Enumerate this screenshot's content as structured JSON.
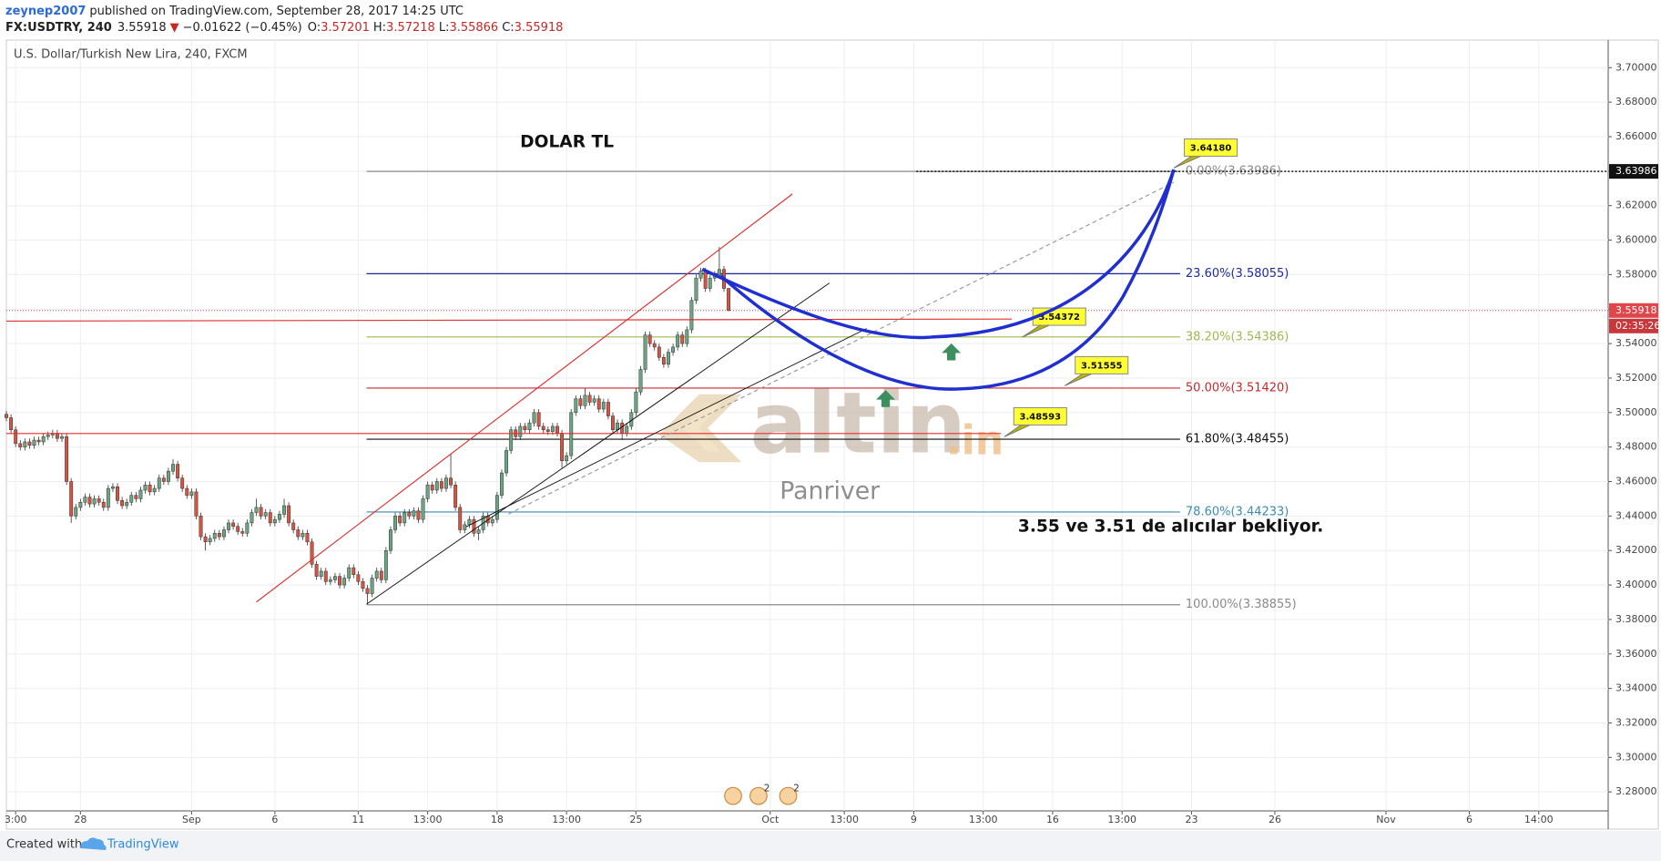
{
  "header": {
    "author": "zeynep2007",
    "published": "published on TradingView.com, September 28, 2017 14:25 UTC"
  },
  "symbol": {
    "ticker": "FX:USDTRY, 240",
    "last": 3.55918,
    "change": "−0.01622 (−0.45%)",
    "open_label": "O:",
    "open": 3.57201,
    "high_label": "H:",
    "high": 3.57218,
    "low_label": "L:",
    "low": 3.55866,
    "close_label": "C:",
    "close": 3.55918
  },
  "chart_data": {
    "type": "candlestick",
    "title": "U.S. Dollar/Turkish New Lira, 240, FXCM",
    "up_color": "#6ba583",
    "down_color": "#d75442",
    "grid": true,
    "xlim": [
      -76,
      270
    ],
    "xticks": [
      {
        "value": -74,
        "label": "3:00"
      },
      {
        "value": -60,
        "label": "28"
      },
      {
        "value": -36,
        "label": "Sep"
      },
      {
        "value": -18,
        "label": "6"
      },
      {
        "value": 0,
        "label": "11"
      },
      {
        "value": 15,
        "label": "13:00"
      },
      {
        "value": 30,
        "label": "18"
      },
      {
        "value": 45,
        "label": "13:00"
      },
      {
        "value": 60,
        "label": "25"
      },
      {
        "value": 89,
        "label": "Oct"
      },
      {
        "value": 105,
        "label": "13:00"
      },
      {
        "value": 120,
        "label": "9"
      },
      {
        "value": 135,
        "label": "13:00"
      },
      {
        "value": 150,
        "label": "16"
      },
      {
        "value": 165,
        "label": "13:00"
      },
      {
        "value": 180,
        "label": "23"
      },
      {
        "value": 198,
        "label": "26"
      },
      {
        "value": 222,
        "label": "Nov"
      },
      {
        "value": 240,
        "label": "6"
      },
      {
        "value": 255,
        "label": "14:00"
      }
    ],
    "ylim": [
      3.269,
      3.716
    ],
    "yticks": [
      {
        "value": 3.28,
        "label": "3.28000"
      },
      {
        "value": 3.3,
        "label": "3.30000"
      },
      {
        "value": 3.32,
        "label": "3.32000"
      },
      {
        "value": 3.34,
        "label": "3.34000"
      },
      {
        "value": 3.36,
        "label": "3.36000"
      },
      {
        "value": 3.38,
        "label": "3.38000"
      },
      {
        "value": 3.4,
        "label": "3.40000"
      },
      {
        "value": 3.42,
        "label": "3.42000"
      },
      {
        "value": 3.44,
        "label": "3.44000"
      },
      {
        "value": 3.46,
        "label": "3.46000"
      },
      {
        "value": 3.48,
        "label": "3.48000"
      },
      {
        "value": 3.5,
        "label": "3.50000"
      },
      {
        "value": 3.52,
        "label": "3.52000"
      },
      {
        "value": 3.54,
        "label": "3.54000"
      },
      {
        "value": 3.56,
        "label": "3.56000"
      },
      {
        "value": 3.58,
        "label": "3.58000"
      },
      {
        "value": 3.6,
        "label": "3.60000"
      },
      {
        "value": 3.62,
        "label": "3.62000"
      },
      {
        "value": 3.64,
        "label": "3.64000"
      },
      {
        "value": 3.66,
        "label": "3.66000"
      },
      {
        "value": 3.68,
        "label": "3.68000"
      },
      {
        "value": 3.7,
        "label": "3.70000"
      }
    ],
    "start_index": -76,
    "ohlc": [
      [
        3.499,
        3.501,
        3.495,
        3.497
      ],
      [
        3.497,
        3.499,
        3.488,
        3.49
      ],
      [
        3.49,
        3.492,
        3.48,
        3.482
      ],
      [
        3.482,
        3.484,
        3.478,
        3.48
      ],
      [
        3.48,
        3.485,
        3.478,
        3.483
      ],
      [
        3.483,
        3.485,
        3.479,
        3.481
      ],
      [
        3.481,
        3.486,
        3.479,
        3.484
      ],
      [
        3.484,
        3.486,
        3.481,
        3.483
      ],
      [
        3.483,
        3.488,
        3.481,
        3.486
      ],
      [
        3.486,
        3.489,
        3.484,
        3.487
      ],
      [
        3.487,
        3.49,
        3.485,
        3.488
      ],
      [
        3.488,
        3.49,
        3.483,
        3.485
      ],
      [
        3.485,
        3.488,
        3.483,
        3.486
      ],
      [
        3.486,
        3.488,
        3.458,
        3.46
      ],
      [
        3.46,
        3.462,
        3.436,
        3.44
      ],
      [
        3.44,
        3.447,
        3.438,
        3.445
      ],
      [
        3.445,
        3.45,
        3.443,
        3.448
      ],
      [
        3.448,
        3.453,
        3.446,
        3.451
      ],
      [
        3.451,
        3.453,
        3.445,
        3.447
      ],
      [
        3.447,
        3.452,
        3.445,
        3.45
      ],
      [
        3.45,
        3.452,
        3.446,
        3.448
      ],
      [
        3.448,
        3.45,
        3.443,
        3.445
      ],
      [
        3.445,
        3.458,
        3.443,
        3.456
      ],
      [
        3.456,
        3.459,
        3.454,
        3.457
      ],
      [
        3.457,
        3.459,
        3.447,
        3.449
      ],
      [
        3.449,
        3.451,
        3.444,
        3.446
      ],
      [
        3.446,
        3.45,
        3.444,
        3.448
      ],
      [
        3.448,
        3.454,
        3.446,
        3.452
      ],
      [
        3.452,
        3.454,
        3.448,
        3.45
      ],
      [
        3.45,
        3.457,
        3.448,
        3.455
      ],
      [
        3.455,
        3.46,
        3.453,
        3.458
      ],
      [
        3.458,
        3.46,
        3.452,
        3.454
      ],
      [
        3.454,
        3.458,
        3.452,
        3.456
      ],
      [
        3.456,
        3.464,
        3.454,
        3.462
      ],
      [
        3.462,
        3.464,
        3.458,
        3.46
      ],
      [
        3.46,
        3.468,
        3.458,
        3.466
      ],
      [
        3.466,
        3.473,
        3.464,
        3.47
      ],
      [
        3.47,
        3.472,
        3.46,
        3.462
      ],
      [
        3.462,
        3.464,
        3.454,
        3.456
      ],
      [
        3.456,
        3.458,
        3.45,
        3.452
      ],
      [
        3.452,
        3.456,
        3.45,
        3.454
      ],
      [
        3.454,
        3.456,
        3.438,
        3.44
      ],
      [
        3.44,
        3.442,
        3.426,
        3.428
      ],
      [
        3.428,
        3.43,
        3.42,
        3.425
      ],
      [
        3.425,
        3.429,
        3.423,
        3.427
      ],
      [
        3.427,
        3.432,
        3.425,
        3.43
      ],
      [
        3.43,
        3.432,
        3.426,
        3.428
      ],
      [
        3.428,
        3.434,
        3.426,
        3.432
      ],
      [
        3.432,
        3.438,
        3.43,
        3.436
      ],
      [
        3.436,
        3.438,
        3.432,
        3.434
      ],
      [
        3.434,
        3.436,
        3.429,
        3.431
      ],
      [
        3.431,
        3.433,
        3.428,
        3.43
      ],
      [
        3.43,
        3.438,
        3.428,
        3.436
      ],
      [
        3.436,
        3.444,
        3.434,
        3.442
      ],
      [
        3.442,
        3.45,
        3.44,
        3.445
      ],
      [
        3.445,
        3.447,
        3.438,
        3.44
      ],
      [
        3.44,
        3.444,
        3.438,
        3.442
      ],
      [
        3.442,
        3.444,
        3.434,
        3.436
      ],
      [
        3.436,
        3.44,
        3.434,
        3.438
      ],
      [
        3.438,
        3.443,
        3.436,
        3.441
      ],
      [
        3.441,
        3.45,
        3.439,
        3.446
      ],
      [
        3.446,
        3.448,
        3.434,
        3.436
      ],
      [
        3.436,
        3.438,
        3.43,
        3.432
      ],
      [
        3.432,
        3.434,
        3.426,
        3.428
      ],
      [
        3.428,
        3.432,
        3.426,
        3.43
      ],
      [
        3.43,
        3.432,
        3.423,
        3.425
      ],
      [
        3.425,
        3.427,
        3.41,
        3.412
      ],
      [
        3.412,
        3.414,
        3.403,
        3.405
      ],
      [
        3.405,
        3.41,
        3.403,
        3.408
      ],
      [
        3.408,
        3.41,
        3.4,
        3.402
      ],
      [
        3.402,
        3.405,
        3.4,
        3.403
      ],
      [
        3.403,
        3.407,
        3.401,
        3.405
      ],
      [
        3.405,
        3.407,
        3.398,
        3.4
      ],
      [
        3.4,
        3.406,
        3.398,
        3.404
      ],
      [
        3.404,
        3.412,
        3.402,
        3.41
      ],
      [
        3.41,
        3.412,
        3.404,
        3.406
      ],
      [
        3.406,
        3.408,
        3.4,
        3.402
      ],
      [
        3.402,
        3.404,
        3.396,
        3.398
      ],
      [
        3.398,
        3.4,
        3.389,
        3.395
      ],
      [
        3.395,
        3.406,
        3.393,
        3.404
      ],
      [
        3.404,
        3.41,
        3.402,
        3.408
      ],
      [
        3.408,
        3.41,
        3.401,
        3.403
      ],
      [
        3.403,
        3.422,
        3.401,
        3.42
      ],
      [
        3.42,
        3.434,
        3.418,
        3.432
      ],
      [
        3.432,
        3.442,
        3.43,
        3.44
      ],
      [
        3.44,
        3.442,
        3.434,
        3.436
      ],
      [
        3.436,
        3.444,
        3.434,
        3.442
      ],
      [
        3.442,
        3.444,
        3.438,
        3.44
      ],
      [
        3.44,
        3.445,
        3.438,
        3.443
      ],
      [
        3.443,
        3.445,
        3.436,
        3.438
      ],
      [
        3.438,
        3.452,
        3.436,
        3.45
      ],
      [
        3.45,
        3.46,
        3.448,
        3.458
      ],
      [
        3.458,
        3.46,
        3.453,
        3.455
      ],
      [
        3.455,
        3.462,
        3.453,
        3.46
      ],
      [
        3.46,
        3.462,
        3.454,
        3.456
      ],
      [
        3.456,
        3.464,
        3.454,
        3.462
      ],
      [
        3.462,
        3.476,
        3.456,
        3.458
      ],
      [
        3.458,
        3.46,
        3.443,
        3.445
      ],
      [
        3.445,
        3.447,
        3.43,
        3.432
      ],
      [
        3.432,
        3.437,
        3.43,
        3.435
      ],
      [
        3.435,
        3.44,
        3.433,
        3.438
      ],
      [
        3.438,
        3.44,
        3.428,
        3.43
      ],
      [
        3.43,
        3.434,
        3.426,
        3.432
      ],
      [
        3.432,
        3.442,
        3.43,
        3.44
      ],
      [
        3.44,
        3.442,
        3.434,
        3.436
      ],
      [
        3.436,
        3.44,
        3.434,
        3.438
      ],
      [
        3.438,
        3.454,
        3.436,
        3.452
      ],
      [
        3.452,
        3.467,
        3.45,
        3.465
      ],
      [
        3.465,
        3.48,
        3.463,
        3.478
      ],
      [
        3.478,
        3.492,
        3.476,
        3.49
      ],
      [
        3.49,
        3.492,
        3.484,
        3.486
      ],
      [
        3.486,
        3.494,
        3.484,
        3.492
      ],
      [
        3.492,
        3.494,
        3.488,
        3.49
      ],
      [
        3.49,
        3.496,
        3.488,
        3.494
      ],
      [
        3.494,
        3.502,
        3.492,
        3.5
      ],
      [
        3.5,
        3.502,
        3.49,
        3.492
      ],
      [
        3.492,
        3.494,
        3.488,
        3.49
      ],
      [
        3.49,
        3.492,
        3.487,
        3.489
      ],
      [
        3.489,
        3.494,
        3.487,
        3.492
      ],
      [
        3.492,
        3.494,
        3.486,
        3.488
      ],
      [
        3.488,
        3.49,
        3.468,
        3.472
      ],
      [
        3.472,
        3.477,
        3.47,
        3.475
      ],
      [
        3.475,
        3.502,
        3.473,
        3.5
      ],
      [
        3.5,
        3.51,
        3.498,
        3.508
      ],
      [
        3.508,
        3.51,
        3.502,
        3.504
      ],
      [
        3.504,
        3.514,
        3.502,
        3.51
      ],
      [
        3.51,
        3.512,
        3.504,
        3.506
      ],
      [
        3.506,
        3.51,
        3.504,
        3.508
      ],
      [
        3.508,
        3.51,
        3.5,
        3.502
      ],
      [
        3.502,
        3.508,
        3.5,
        3.506
      ],
      [
        3.506,
        3.508,
        3.496,
        3.498
      ],
      [
        3.498,
        3.5,
        3.488,
        3.49
      ],
      [
        3.49,
        3.496,
        3.488,
        3.494
      ],
      [
        3.494,
        3.496,
        3.484,
        3.488
      ],
      [
        3.488,
        3.494,
        3.486,
        3.492
      ],
      [
        3.492,
        3.502,
        3.49,
        3.5
      ],
      [
        3.5,
        3.514,
        3.498,
        3.512
      ],
      [
        3.512,
        3.527,
        3.51,
        3.525
      ],
      [
        3.525,
        3.547,
        3.523,
        3.545
      ],
      [
        3.545,
        3.547,
        3.538,
        3.54
      ],
      [
        3.54,
        3.542,
        3.536,
        3.538
      ],
      [
        3.538,
        3.54,
        3.53,
        3.532
      ],
      [
        3.532,
        3.534,
        3.526,
        3.528
      ],
      [
        3.528,
        3.537,
        3.526,
        3.535
      ],
      [
        3.535,
        3.54,
        3.533,
        3.538
      ],
      [
        3.538,
        3.547,
        3.536,
        3.545
      ],
      [
        3.545,
        3.547,
        3.538,
        3.54
      ],
      [
        3.54,
        3.55,
        3.538,
        3.548
      ],
      [
        3.548,
        3.567,
        3.546,
        3.565
      ],
      [
        3.565,
        3.58,
        3.563,
        3.578
      ],
      [
        3.578,
        3.584,
        3.576,
        3.582
      ],
      [
        3.582,
        3.584,
        3.57,
        3.572
      ],
      [
        3.572,
        3.58,
        3.57,
        3.578
      ],
      [
        3.578,
        3.582,
        3.576,
        3.58
      ],
      [
        3.58,
        3.596,
        3.578,
        3.583
      ],
      [
        3.583,
        3.585,
        3.57,
        3.572
      ],
      [
        3.57201,
        3.57218,
        3.55866,
        3.55918
      ]
    ],
    "fib_levels": [
      {
        "value": 3.63986,
        "label": "0.00%(3.63986)",
        "color": "#8a8a8a"
      },
      {
        "value": 3.58055,
        "label": "23.60%(3.58055)",
        "color": "#1f2a9c"
      },
      {
        "value": 3.54386,
        "label": "38.20%(3.54386)",
        "color": "#9cba4e"
      },
      {
        "value": 3.5142,
        "label": "50.00%(3.51420)",
        "color": "#c8282d"
      },
      {
        "value": 3.48455,
        "label": "61.80%(3.48455)",
        "color": "#111111"
      },
      {
        "value": 3.44233,
        "label": "78.60%(3.44233)",
        "color": "#3d8bb0"
      },
      {
        "value": 3.38855,
        "label": "100.00%(3.38855)",
        "color": "#8a8a8a"
      }
    ],
    "callouts": [
      {
        "value": 3.6418,
        "label": "3.64180"
      },
      {
        "value": 3.54372,
        "label": "3.54372"
      },
      {
        "value": 3.51555,
        "label": "3.51555"
      },
      {
        "value": 3.48593,
        "label": "3.48593"
      }
    ],
    "heading": "DOLAR TL",
    "note": "3.55 ve 3.51 de alıcılar bekliyor.",
    "last_price": 3.55918,
    "countdown": "02:35:26",
    "fib_top_price": 3.63986,
    "event_counts": [
      2,
      2
    ]
  },
  "watermark": {
    "brand": "altin",
    "suffix": ".in",
    "author": "Panriver"
  },
  "footer": {
    "created": "Created with",
    "brand": "TradingView"
  }
}
